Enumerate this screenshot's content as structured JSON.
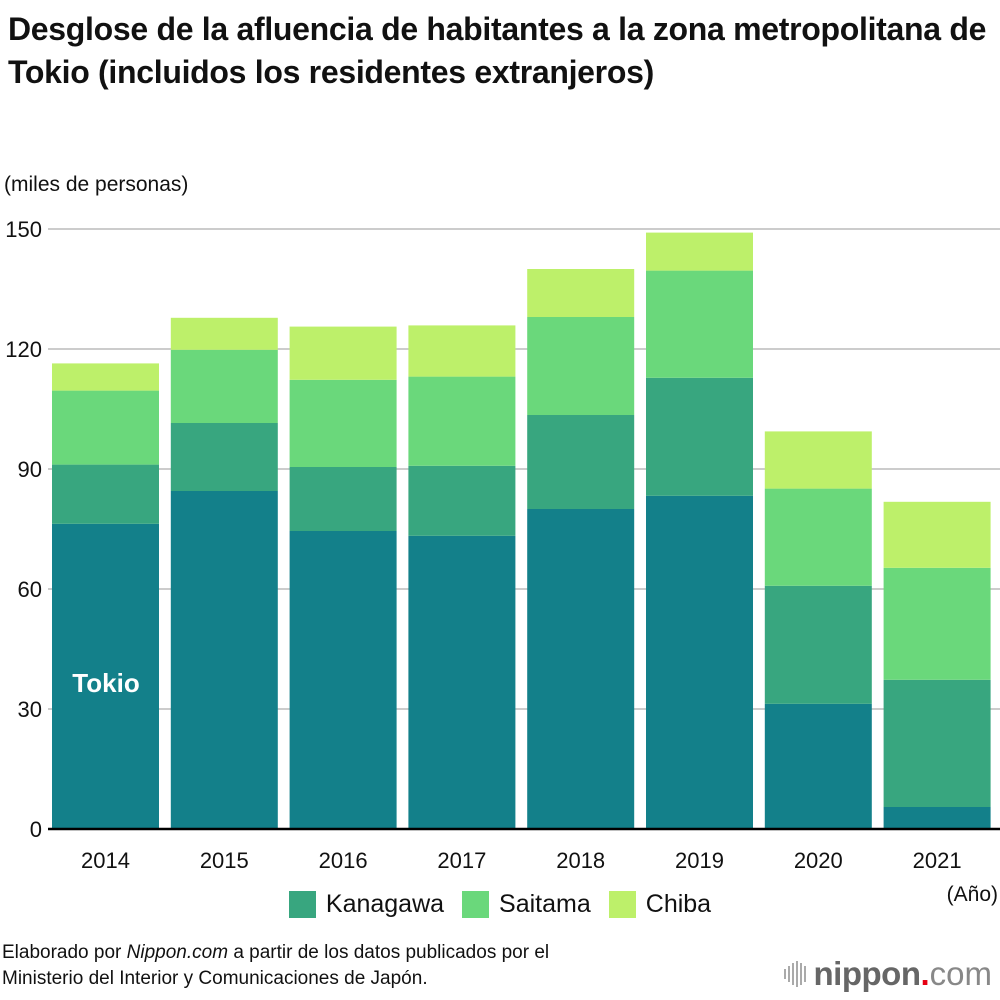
{
  "chart_data": {
    "type": "bar",
    "stacked": true,
    "title": "Desglose de la afluencia de habitantes a la zona metropolitana de Tokio (incluidos los residentes extranjeros)",
    "ylabel": "(miles de personas)",
    "xlabel": "(Año)",
    "ylim": [
      0,
      150
    ],
    "yticks": [
      0,
      30,
      60,
      90,
      120,
      150
    ],
    "grid": true,
    "legend_position": "bottom-center",
    "categories": [
      "2014",
      "2015",
      "2016",
      "2017",
      "2018",
      "2019",
      "2020",
      "2021"
    ],
    "series": [
      {
        "name": "Tokio",
        "color": "#13808a",
        "values": [
          76.3,
          84.5,
          74.5,
          73.3,
          80.0,
          83.3,
          31.3,
          5.5
        ]
      },
      {
        "name": "Kanagawa",
        "color": "#38a67f",
        "values": [
          14.8,
          17.0,
          16.0,
          17.5,
          23.5,
          29.5,
          29.5,
          31.8
        ]
      },
      {
        "name": "Saitama",
        "color": "#6ad87b",
        "values": [
          18.5,
          18.3,
          21.8,
          22.3,
          24.5,
          26.8,
          24.3,
          28.0
        ]
      },
      {
        "name": "Chiba",
        "color": "#bdf06a",
        "values": [
          6.8,
          8.0,
          13.3,
          12.8,
          12.0,
          9.5,
          14.3,
          16.5
        ]
      }
    ],
    "annotations": [
      {
        "text": "Tokio",
        "series": "Tokio",
        "category": "2014"
      }
    ]
  },
  "page": {
    "title": "Desglose de la afluencia de habitantes a la zona metropolitana de Tokio (incluidos los residentes extranjeros)",
    "unit_label": "(miles de personas)",
    "x_unit_label": "(Año)",
    "tokyo_label": "Tokio",
    "legend": [
      {
        "label": "Kanagawa",
        "color": "#38a67f"
      },
      {
        "label": "Saitama",
        "color": "#6ad87b"
      },
      {
        "label": "Chiba",
        "color": "#bdf06a"
      }
    ],
    "source": {
      "prefix": "Elaborado por ",
      "brand_italic": "Nippon.com",
      "suffix": " a partir de los datos publicados por el",
      "line2": "Ministerio del Interior y Comunicaciones de Japón."
    },
    "logo": {
      "brand": "nippon",
      "dot": ".",
      "tld": "com"
    }
  }
}
